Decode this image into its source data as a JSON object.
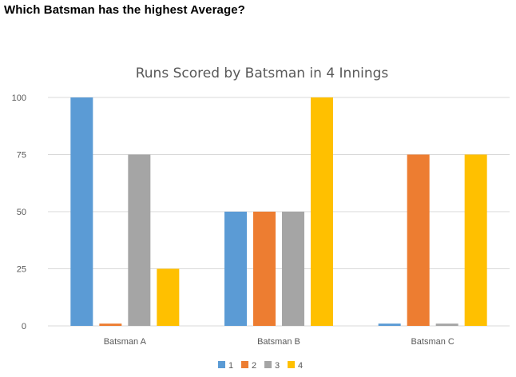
{
  "question": "Which Batsman has the highest Average?",
  "chart_data": {
    "type": "bar",
    "title": "Runs Scored by Batsman in 4 Innings",
    "xlabel": "",
    "ylabel": "",
    "categories": [
      "Batsman A",
      "Batsman B",
      "Batsman C"
    ],
    "series": [
      {
        "name": "1",
        "values": [
          100,
          50,
          1
        ],
        "color": "#5b9bd5"
      },
      {
        "name": "2",
        "values": [
          1,
          50,
          75
        ],
        "color": "#ed7d31"
      },
      {
        "name": "3",
        "values": [
          75,
          50,
          1
        ],
        "color": "#a5a5a5"
      },
      {
        "name": "4",
        "values": [
          25,
          100,
          75
        ],
        "color": "#ffc000"
      }
    ],
    "ylim": [
      0,
      100
    ],
    "yticks": [
      0,
      25,
      50,
      75,
      100
    ],
    "grid": true,
    "legend": "bottom"
  }
}
